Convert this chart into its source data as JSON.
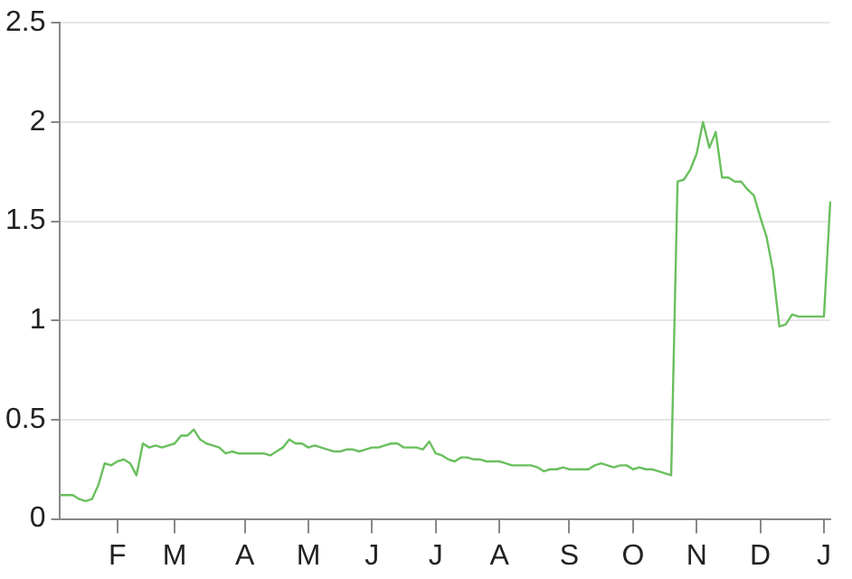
{
  "chart_data": {
    "type": "line",
    "color": "#6abf5e",
    "grid": "y",
    "marker": "none",
    "line_style": "solid",
    "legend": false,
    "ylim": [
      0,
      2.5
    ],
    "yticks": [
      0,
      0.5,
      1,
      1.5,
      2,
      2.5
    ],
    "categories": [
      null,
      null,
      null,
      null,
      null,
      null,
      null,
      null,
      null,
      "F",
      null,
      null,
      null,
      null,
      null,
      null,
      null,
      null,
      "M",
      null,
      null,
      null,
      null,
      null,
      null,
      null,
      null,
      null,
      null,
      "A",
      null,
      null,
      null,
      null,
      null,
      null,
      null,
      null,
      null,
      "M",
      null,
      null,
      null,
      null,
      null,
      null,
      null,
      null,
      null,
      "J",
      null,
      null,
      null,
      null,
      null,
      null,
      null,
      null,
      null,
      "J",
      null,
      null,
      null,
      null,
      null,
      null,
      null,
      null,
      null,
      "A",
      null,
      null,
      null,
      null,
      null,
      null,
      null,
      null,
      null,
      null,
      "S",
      null,
      null,
      null,
      null,
      null,
      null,
      null,
      null,
      null,
      "O",
      null,
      null,
      null,
      null,
      null,
      null,
      null,
      null,
      null,
      "N",
      null,
      null,
      null,
      null,
      null,
      null,
      null,
      null,
      null,
      "D",
      null,
      null,
      null,
      null,
      null,
      null,
      null,
      null,
      null,
      "J",
      null
    ],
    "values": [
      0.12,
      0.12,
      0.12,
      0.1,
      0.09,
      0.1,
      0.17,
      0.28,
      0.27,
      0.29,
      0.3,
      0.28,
      0.22,
      0.38,
      0.36,
      0.37,
      0.36,
      0.37,
      0.38,
      0.42,
      0.42,
      0.45,
      0.4,
      0.38,
      0.37,
      0.36,
      0.33,
      0.34,
      0.33,
      0.33,
      0.33,
      0.33,
      0.33,
      0.32,
      0.34,
      0.36,
      0.4,
      0.38,
      0.38,
      0.36,
      0.37,
      0.36,
      0.35,
      0.34,
      0.34,
      0.35,
      0.35,
      0.34,
      0.35,
      0.36,
      0.36,
      0.37,
      0.38,
      0.38,
      0.36,
      0.36,
      0.36,
      0.35,
      0.39,
      0.33,
      0.32,
      0.3,
      0.29,
      0.31,
      0.31,
      0.3,
      0.3,
      0.29,
      0.29,
      0.29,
      0.28,
      0.27,
      0.27,
      0.27,
      0.27,
      0.26,
      0.24,
      0.25,
      0.25,
      0.26,
      0.25,
      0.25,
      0.25,
      0.25,
      0.27,
      0.28,
      0.27,
      0.26,
      0.27,
      0.27,
      0.25,
      0.26,
      0.25,
      0.25,
      0.24,
      0.23,
      0.22,
      1.7,
      1.71,
      1.76,
      1.84,
      2,
      1.87,
      1.95,
      1.72,
      1.72,
      1.7,
      1.7,
      1.66,
      1.63,
      1.52,
      1.42,
      1.25,
      0.97,
      0.98,
      1.03,
      1.02,
      1.02,
      1.02,
      1.02,
      1.02,
      1.6
    ]
  }
}
